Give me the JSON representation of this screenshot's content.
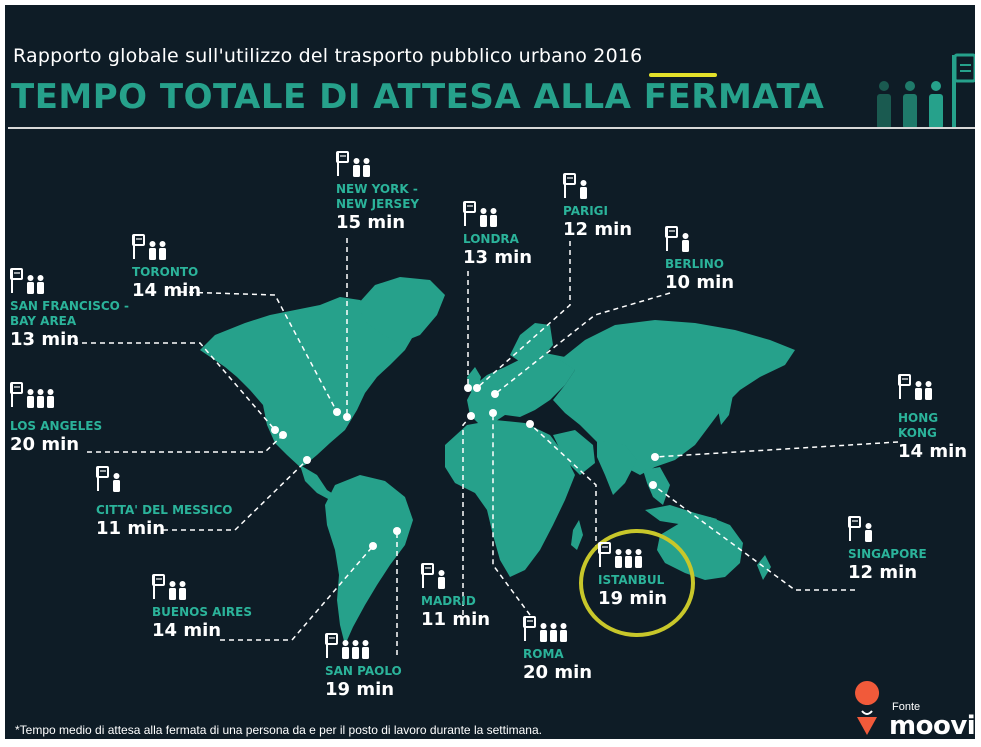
{
  "header": {
    "subtitle": "Rapporto globale sull'utilizzo del trasporto pubblico urbano",
    "year": "2016",
    "title": "TEMPO TOTALE DI ATTESA ALLA FERMATA"
  },
  "cities": [
    {
      "name": "NEW YORK -\nNEW JERSEY",
      "time": "15 min",
      "people": 2
    },
    {
      "name": "TORONTO",
      "time": "14 min",
      "people": 2
    },
    {
      "name": "SAN FRANCISCO -\nBAY AREA",
      "time": "13 min",
      "people": 2
    },
    {
      "name": "LONDRA",
      "time": "13 min",
      "people": 2
    },
    {
      "name": "PARIGI",
      "time": "12 min",
      "people": 1
    },
    {
      "name": "BERLINO",
      "time": "10 min",
      "people": 1
    },
    {
      "name": "LOS ANGELES",
      "time": "20 min",
      "people": 3
    },
    {
      "name": "HONG KONG",
      "time": "14 min",
      "people": 2
    },
    {
      "name": "CITTA' DEL MESSICO",
      "time": "11 min",
      "people": 1
    },
    {
      "name": "SINGAPORE",
      "time": "12 min",
      "people": 1
    },
    {
      "name": "ISTANBUL",
      "time": "19 min",
      "people": 3
    },
    {
      "name": "BUENOS AIRES",
      "time": "14 min",
      "people": 2
    },
    {
      "name": "MADRID",
      "time": "11 min",
      "people": 1
    },
    {
      "name": "ROMA",
      "time": "20 min",
      "people": 3
    },
    {
      "name": "SAN PAOLO",
      "time": "19 min",
      "people": 3
    }
  ],
  "footer": {
    "footnote": "*Tempo medio di attesa alla fermata di una persona da e per il posto di lavoro durante la settimana.",
    "source_label": "Fonte",
    "source_brand": "moovit"
  },
  "colors": {
    "background": "#0e1c26",
    "map": "#26a18b",
    "accent": "#2bb39a",
    "highlight": "#c8c72a",
    "brand_pin": "#f15a3a"
  }
}
